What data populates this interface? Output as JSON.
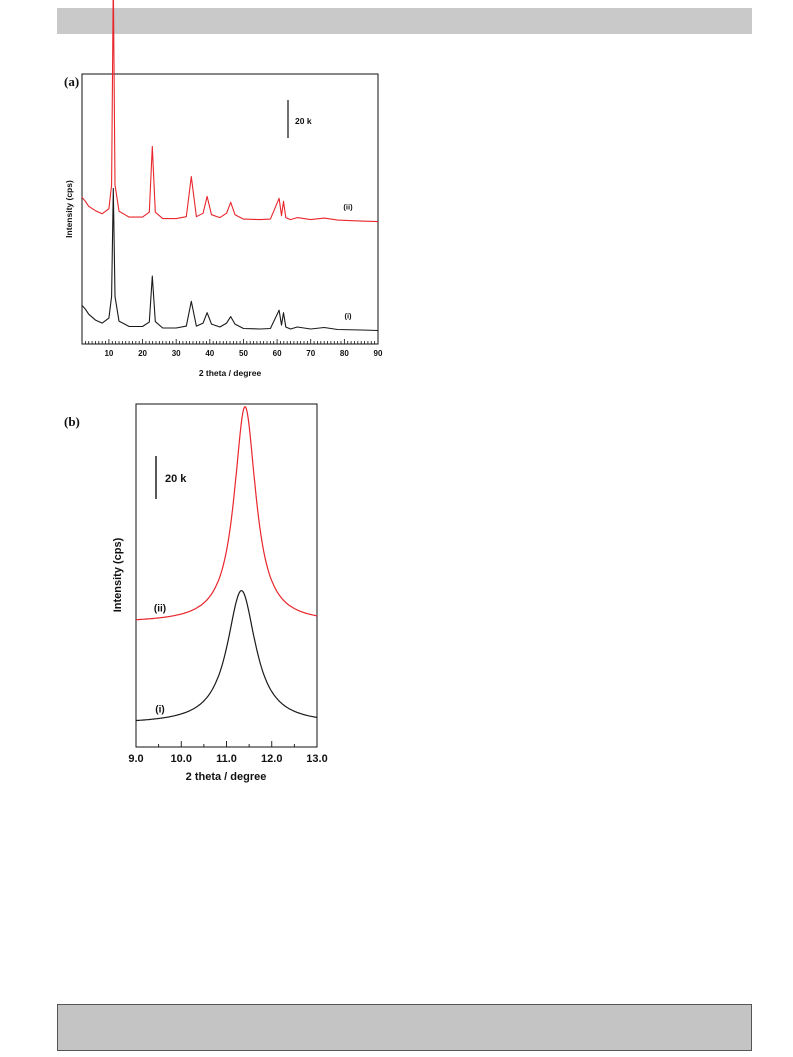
{
  "panels": {
    "a_label": "(a)",
    "b_label": "(b)"
  },
  "chart_data": [
    {
      "type": "line",
      "panel": "(a)",
      "xlabel": "2 theta / degree",
      "ylabel": "Intensity (cps)",
      "xlim": [
        2,
        90
      ],
      "xticks": [
        10,
        20,
        30,
        40,
        50,
        60,
        70,
        80,
        90
      ],
      "scale_bar": "20 k",
      "colors": {
        "i": "#1a1a1a",
        "ii": "#e8262b"
      },
      "series": [
        {
          "name": "(i)",
          "baseline": 0,
          "x": [
            2,
            3,
            4,
            6,
            8,
            10,
            10.8,
            11.3,
            11.8,
            13,
            16,
            20,
            22,
            22.9,
            23.8,
            26,
            30,
            33,
            34.5,
            36,
            38,
            39.2,
            40.5,
            43,
            45,
            46.2,
            47.5,
            50,
            55,
            58,
            60.6,
            61.3,
            61.9,
            62.6,
            64,
            66,
            70,
            74,
            78,
            85,
            90
          ],
          "y": [
            5.2,
            4.4,
            3.4,
            2.2,
            1.6,
            2.6,
            7.0,
            28.8,
            7.0,
            2.0,
            0.9,
            0.9,
            1.8,
            11.1,
            1.9,
            0.6,
            0.6,
            1.0,
            6.0,
            1.0,
            1.6,
            3.7,
            1.4,
            0.8,
            1.6,
            2.9,
            1.4,
            0.5,
            0.4,
            0.5,
            4.2,
            1.2,
            3.7,
            0.8,
            0.4,
            0.8,
            0.4,
            0.7,
            0.3,
            0.2,
            0.1
          ]
        },
        {
          "name": "(ii)",
          "baseline": 22,
          "x": [
            2,
            3,
            4,
            6,
            8,
            10,
            10.8,
            11.3,
            11.8,
            13,
            16,
            20,
            22,
            22.9,
            23.8,
            26,
            30,
            33,
            34.5,
            36,
            38,
            39.2,
            40.5,
            43,
            45,
            46.2,
            47.5,
            50,
            55,
            58,
            60.6,
            61.3,
            61.9,
            62.6,
            64,
            66,
            70,
            74,
            78,
            85,
            90
          ],
          "y": [
            5.0,
            4.2,
            3.2,
            2.3,
            1.7,
            2.7,
            7.5,
            49.2,
            7.5,
            2.2,
            1.0,
            1.0,
            2.0,
            15.3,
            2.0,
            0.7,
            0.7,
            1.1,
            9.2,
            1.1,
            1.8,
            5.2,
            1.5,
            0.9,
            1.8,
            4.0,
            1.5,
            0.6,
            0.5,
            0.6,
            4.8,
            1.3,
            4.2,
            0.9,
            0.5,
            0.9,
            0.5,
            0.8,
            0.4,
            0.2,
            0.1
          ]
        }
      ]
    },
    {
      "type": "line",
      "panel": "(b)",
      "xlabel": "2 theta / degree",
      "ylabel": "Intensity (cps)",
      "xlim": [
        9.0,
        13.0
      ],
      "xtick_labels": [
        "9.0",
        "10.0",
        "11.0",
        "12.0",
        "13.0"
      ],
      "xticks": [
        9.0,
        10.0,
        11.0,
        12.0,
        13.0
      ],
      "scale_bar": "20 k",
      "colors": {
        "i": "#1a1a1a",
        "ii": "#e8262b"
      },
      "series": [
        {
          "name": "(i)",
          "baseline": 0,
          "center": 11.33,
          "hwhm": 0.38,
          "peak": 29
        },
        {
          "name": "(ii)",
          "baseline": 22,
          "center": 11.41,
          "hwhm": 0.29,
          "peak": 47
        }
      ]
    }
  ]
}
